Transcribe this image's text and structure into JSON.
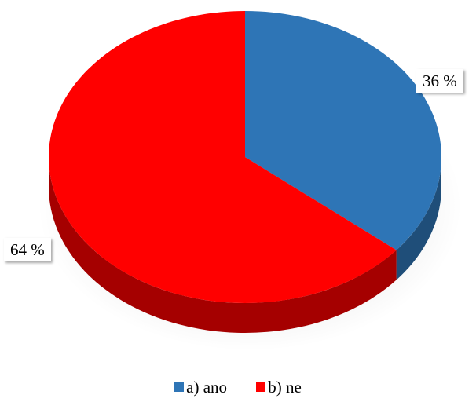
{
  "chart_data": {
    "type": "pie",
    "categories": [
      "a) ano",
      "b) ne"
    ],
    "values": [
      36,
      64
    ],
    "data_labels": [
      "36 %",
      "64 %"
    ],
    "colors": [
      "#2E75B6",
      "#FF0000"
    ],
    "side_colors": [
      "#1F4E79",
      "#A50000"
    ],
    "legend_position": "bottom",
    "style": "3d"
  }
}
